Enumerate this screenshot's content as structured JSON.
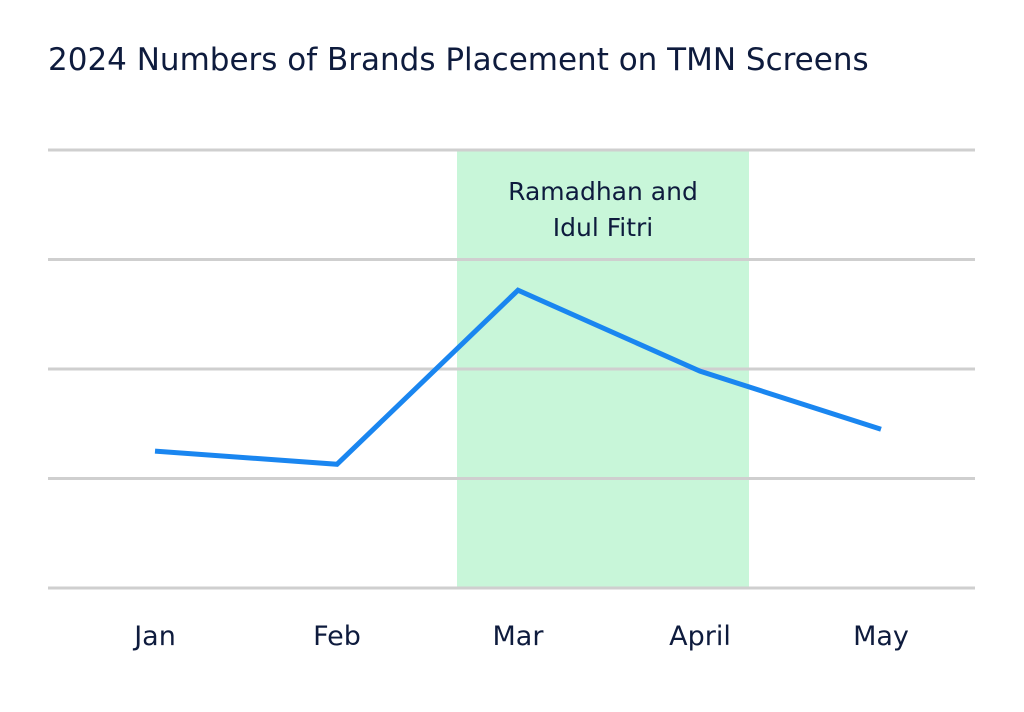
{
  "chart_data": {
    "type": "line",
    "title": "2024 Numbers of Brands Placement on TMN Screens",
    "xlabel": "",
    "ylabel": "",
    "categories": [
      "Jan",
      "Feb",
      "Mar",
      "April",
      "May"
    ],
    "values": [
      1.25,
      1.13,
      2.72,
      1.98,
      1.45
    ],
    "ylim": [
      0,
      4
    ],
    "grid": "horizontal",
    "colors": {
      "line": "#1a86f0",
      "band": "#c8f6d9",
      "grid": "#cfcfcf",
      "text": "#0e1b3d"
    },
    "annotations": [
      {
        "text_lines": [
          "Ramadhan and",
          "Idul Fitri"
        ],
        "x_start": "Mar",
        "x_end": "April"
      }
    ]
  }
}
